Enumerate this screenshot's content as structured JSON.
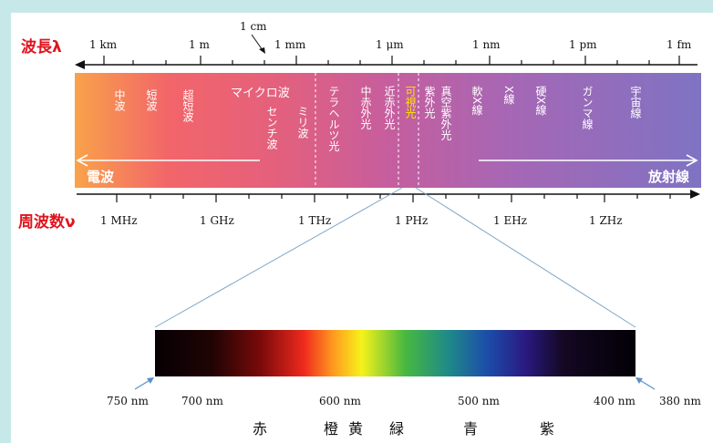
{
  "wavelength_label": "波長λ",
  "frequency_label": "周波数ν",
  "wavelength_ticks": [
    "1 km",
    "1 m",
    "1 cm",
    "1 mm",
    "1 μm",
    "1 nm",
    "1 pm",
    "1 fm"
  ],
  "frequency_ticks": [
    "1 MHz",
    "1 GHz",
    "1 THz",
    "1 PHz",
    "1 EHz",
    "1 ZHz"
  ],
  "bands": {
    "medium_wave": "中波",
    "short_wave": "短波",
    "ultra_short_wave": "超短波",
    "microwave": "マイクロ波",
    "centimeter_wave": "センチ波",
    "millimeter_wave": "ミリ波",
    "terahertz": "テラヘルツ光",
    "mid_infrared": "中赤外光",
    "near_infrared": "近赤外光",
    "visible": "可視光",
    "near_uv": "紫外光",
    "vacuum_uv": "真空紫外光",
    "soft_xray": "軟X線",
    "xray": "X線",
    "hard_xray": "硬X線",
    "gamma": "ガンマ線",
    "cosmic": "宇宙線"
  },
  "radio_label": "電波",
  "radiation_label": "放射線",
  "visible_nm": [
    "750 nm",
    "700 nm",
    "600 nm",
    "500 nm",
    "400 nm",
    "380 nm"
  ],
  "colors_jp": [
    "赤",
    "橙",
    "黄",
    "緑",
    "青",
    "紫"
  ],
  "colors": {
    "label_red": "#e0141e",
    "highlight": "#ffe400"
  }
}
